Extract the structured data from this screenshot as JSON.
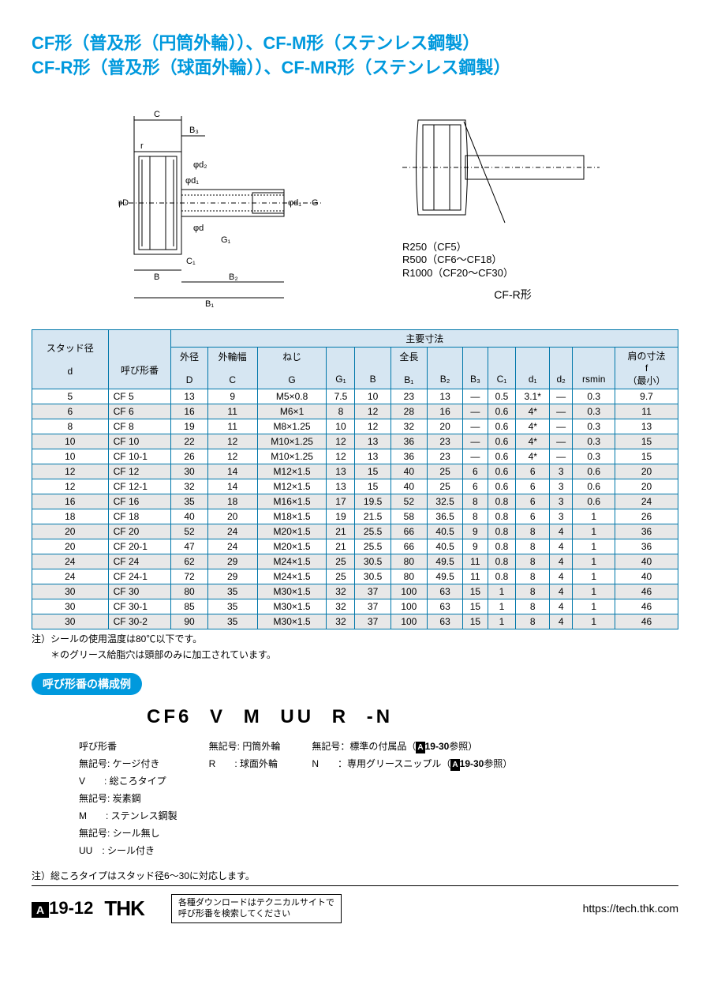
{
  "title_line1": "CF形（普及形（円筒外輪））、CF-M形（ステンレス鋼製）",
  "title_line2": "CF-R形（普及形（球面外輪））、CF-MR形（ステンレス鋼製）",
  "diagram": {
    "labels_left": [
      "C",
      "B₃",
      "r",
      "φd₂",
      "φD",
      "φd₁",
      "φd",
      "G₁",
      "φd₁",
      "G",
      "C₁",
      "B",
      "B₂",
      "B₁"
    ],
    "labels_right": [
      "R250（CF5）",
      "R500（CF6～CF18）",
      "R1000（CF20～CF30）"
    ],
    "caption_right": "CF-R形"
  },
  "table": {
    "header_group1": "スタッド径",
    "header_group2": "主要寸法",
    "sub_headers": {
      "d": "d",
      "model": "呼び形番",
      "D_label": "外径",
      "C_label": "外輪幅",
      "G_label": "ねじ",
      "full_len": "全長",
      "shoulder": "肩の寸法",
      "f": "f",
      "min": "（最小）",
      "D": "D",
      "C": "C",
      "G": "G",
      "G1": "G₁",
      "B": "B",
      "B1": "B₁",
      "B2": "B₂",
      "B3": "B₃",
      "C1": "C₁",
      "d1": "d₁",
      "d2": "d₂",
      "rsmin": "rsmin"
    },
    "rows": [
      {
        "d": "5",
        "model": "CF 5",
        "D": "13",
        "C": "9",
        "G": "M5×0.8",
        "G1": "7.5",
        "B": "10",
        "B1": "23",
        "B2": "13",
        "B3": "—",
        "C1": "0.5",
        "d1": "3.1*",
        "d2": "—",
        "rsmin": "0.3",
        "f": "9.7"
      },
      {
        "d": "6",
        "model": "CF 6",
        "D": "16",
        "C": "11",
        "G": "M6×1",
        "G1": "8",
        "B": "12",
        "B1": "28",
        "B2": "16",
        "B3": "—",
        "C1": "0.6",
        "d1": "4*",
        "d2": "—",
        "rsmin": "0.3",
        "f": "11"
      },
      {
        "d": "8",
        "model": "CF 8",
        "D": "19",
        "C": "11",
        "G": "M8×1.25",
        "G1": "10",
        "B": "12",
        "B1": "32",
        "B2": "20",
        "B3": "—",
        "C1": "0.6",
        "d1": "4*",
        "d2": "—",
        "rsmin": "0.3",
        "f": "13"
      },
      {
        "d": "10",
        "model": "CF 10",
        "D": "22",
        "C": "12",
        "G": "M10×1.25",
        "G1": "12",
        "B": "13",
        "B1": "36",
        "B2": "23",
        "B3": "—",
        "C1": "0.6",
        "d1": "4*",
        "d2": "—",
        "rsmin": "0.3",
        "f": "15"
      },
      {
        "d": "10",
        "model": "CF 10-1",
        "D": "26",
        "C": "12",
        "G": "M10×1.25",
        "G1": "12",
        "B": "13",
        "B1": "36",
        "B2": "23",
        "B3": "—",
        "C1": "0.6",
        "d1": "4*",
        "d2": "—",
        "rsmin": "0.3",
        "f": "15"
      },
      {
        "d": "12",
        "model": "CF 12",
        "D": "30",
        "C": "14",
        "G": "M12×1.5",
        "G1": "13",
        "B": "15",
        "B1": "40",
        "B2": "25",
        "B3": "6",
        "C1": "0.6",
        "d1": "6",
        "d2": "3",
        "rsmin": "0.6",
        "f": "20"
      },
      {
        "d": "12",
        "model": "CF 12-1",
        "D": "32",
        "C": "14",
        "G": "M12×1.5",
        "G1": "13",
        "B": "15",
        "B1": "40",
        "B2": "25",
        "B3": "6",
        "C1": "0.6",
        "d1": "6",
        "d2": "3",
        "rsmin": "0.6",
        "f": "20"
      },
      {
        "d": "16",
        "model": "CF 16",
        "D": "35",
        "C": "18",
        "G": "M16×1.5",
        "G1": "17",
        "B": "19.5",
        "B1": "52",
        "B2": "32.5",
        "B3": "8",
        "C1": "0.8",
        "d1": "6",
        "d2": "3",
        "rsmin": "0.6",
        "f": "24"
      },
      {
        "d": "18",
        "model": "CF 18",
        "D": "40",
        "C": "20",
        "G": "M18×1.5",
        "G1": "19",
        "B": "21.5",
        "B1": "58",
        "B2": "36.5",
        "B3": "8",
        "C1": "0.8",
        "d1": "6",
        "d2": "3",
        "rsmin": "1",
        "f": "26"
      },
      {
        "d": "20",
        "model": "CF 20",
        "D": "52",
        "C": "24",
        "G": "M20×1.5",
        "G1": "21",
        "B": "25.5",
        "B1": "66",
        "B2": "40.5",
        "B3": "9",
        "C1": "0.8",
        "d1": "8",
        "d2": "4",
        "rsmin": "1",
        "f": "36"
      },
      {
        "d": "20",
        "model": "CF 20-1",
        "D": "47",
        "C": "24",
        "G": "M20×1.5",
        "G1": "21",
        "B": "25.5",
        "B1": "66",
        "B2": "40.5",
        "B3": "9",
        "C1": "0.8",
        "d1": "8",
        "d2": "4",
        "rsmin": "1",
        "f": "36"
      },
      {
        "d": "24",
        "model": "CF 24",
        "D": "62",
        "C": "29",
        "G": "M24×1.5",
        "G1": "25",
        "B": "30.5",
        "B1": "80",
        "B2": "49.5",
        "B3": "11",
        "C1": "0.8",
        "d1": "8",
        "d2": "4",
        "rsmin": "1",
        "f": "40"
      },
      {
        "d": "24",
        "model": "CF 24-1",
        "D": "72",
        "C": "29",
        "G": "M24×1.5",
        "G1": "25",
        "B": "30.5",
        "B1": "80",
        "B2": "49.5",
        "B3": "11",
        "C1": "0.8",
        "d1": "8",
        "d2": "4",
        "rsmin": "1",
        "f": "40"
      },
      {
        "d": "30",
        "model": "CF 30",
        "D": "80",
        "C": "35",
        "G": "M30×1.5",
        "G1": "32",
        "B": "37",
        "B1": "100",
        "B2": "63",
        "B3": "15",
        "C1": "1",
        "d1": "8",
        "d2": "4",
        "rsmin": "1",
        "f": "46"
      },
      {
        "d": "30",
        "model": "CF 30-1",
        "D": "85",
        "C": "35",
        "G": "M30×1.5",
        "G1": "32",
        "B": "37",
        "B1": "100",
        "B2": "63",
        "B3": "15",
        "C1": "1",
        "d1": "8",
        "d2": "4",
        "rsmin": "1",
        "f": "46"
      },
      {
        "d": "30",
        "model": "CF 30-2",
        "D": "90",
        "C": "35",
        "G": "M30×1.5",
        "G1": "32",
        "B": "37",
        "B1": "100",
        "B2": "63",
        "B3": "15",
        "C1": "1",
        "d1": "8",
        "d2": "4",
        "rsmin": "1",
        "f": "46"
      }
    ]
  },
  "notes": {
    "note1": "注）シールの使用温度は80℃以下です。",
    "note2": "　　＊のグリース給脂穴は頭部のみに加工されています。"
  },
  "naming": {
    "section_label": "呼び形番の構成例",
    "code": [
      "CF6",
      "V",
      "M",
      "UU",
      "R",
      "-N"
    ],
    "explain_model": "呼び形番",
    "explain_v1": "無記号: ケージ付き",
    "explain_v2": "V　　: 総ころタイプ",
    "explain_m1": "無記号: 炭素鋼",
    "explain_m2": "M　　: ステンレス鋼製",
    "explain_uu1": "無記号: シール無し",
    "explain_uu2": "UU　: シール付き",
    "explain_r1": "無記号: 円筒外輪",
    "explain_r2": "R　　: 球面外輪",
    "explain_n1_pre": "無記号：標準の付属品（",
    "explain_n1_ref": "A",
    "explain_n1_page": "19-30",
    "explain_n1_post": "参照）",
    "explain_n2_pre": "N　　：専用グリースニップル（",
    "explain_n2_ref": "A",
    "explain_n2_page": "19-30",
    "explain_n2_post": "参照）"
  },
  "note_bottom": "注）総ころタイプはスタッド径6～30に対応します。",
  "footer": {
    "page_prefix": "A",
    "page_num": "19-12",
    "brand": "THK",
    "box_line1": "各種ダウンロードはテクニカルサイトで",
    "box_line2": "呼び形番を検索してください",
    "url": "https://tech.thk.com"
  },
  "colors": {
    "accent": "#0099dd",
    "border": "#0077aa",
    "header_bg": "#d6e6f2",
    "row_even": "#e8e8e8"
  }
}
